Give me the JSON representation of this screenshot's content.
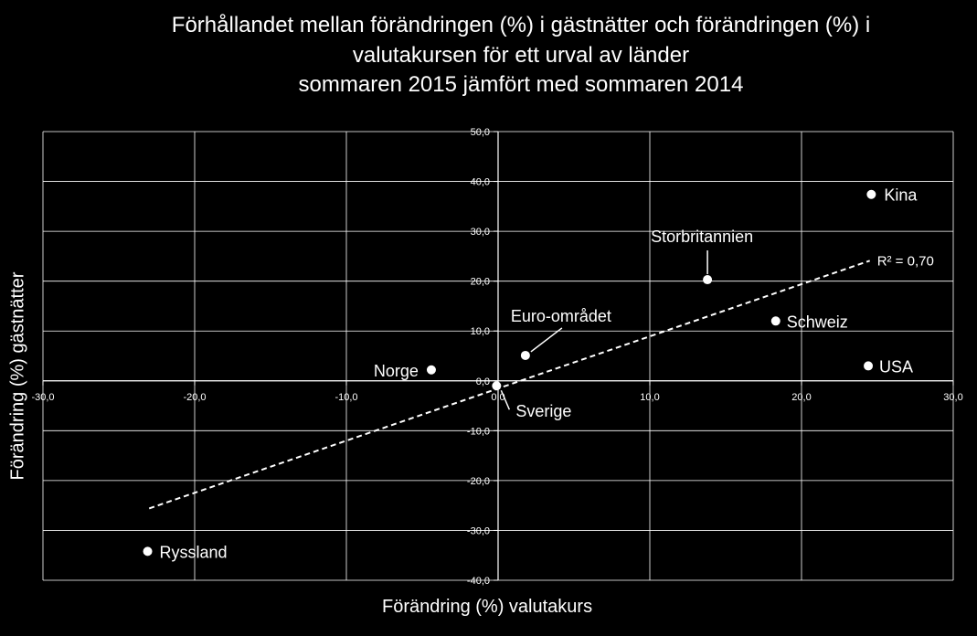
{
  "chart_data": {
    "type": "scatter",
    "title_lines": [
      "Förhållandet mellan förändringen (%) i gästnätter och förändringen (%) i",
      "valutakursen för ett urval av länder",
      "sommaren 2015 jämfört med sommaren 2014"
    ],
    "xlabel": "Förändring (%) valutakurs",
    "ylabel": "Förändring (%) gästnätter",
    "xlim": [
      -30,
      30
    ],
    "ylim": [
      -40,
      50
    ],
    "x_ticks": [
      -30,
      -20,
      -10,
      0,
      10,
      20,
      30
    ],
    "y_ticks": [
      50,
      40,
      30,
      20,
      10,
      0,
      -10,
      -20,
      -30,
      -40
    ],
    "x_tick_labels": [
      "-30,0",
      "-20,0",
      "-10,0",
      "0,0",
      "10,0",
      "20,0",
      "30,0"
    ],
    "y_tick_labels": [
      "50,0",
      "40,0",
      "30,0",
      "20,0",
      "10,0",
      "0,0",
      "-10,0",
      "-20,0",
      "-30,0",
      "-40,0"
    ],
    "grid": true,
    "points": [
      {
        "label": "Kina",
        "x": 24.6,
        "y": 37.4
      },
      {
        "label": "Storbritannien",
        "x": 13.8,
        "y": 20.3
      },
      {
        "label": "Schweiz",
        "x": 18.3,
        "y": 12.0
      },
      {
        "label": "USA",
        "x": 24.4,
        "y": 3.0
      },
      {
        "label": "Euro-området",
        "x": 1.8,
        "y": 5.1
      },
      {
        "label": "Norge",
        "x": -4.4,
        "y": 2.2
      },
      {
        "label": "Sverige",
        "x": -0.1,
        "y": -1.0
      },
      {
        "label": "Ryssland",
        "x": -23.1,
        "y": -34.2
      }
    ],
    "trendline": {
      "x": [
        -23.0,
        24.5
      ],
      "y": [
        -25.6,
        24.1
      ],
      "style": "dashed"
    },
    "annotation": "R² = 0,70"
  }
}
